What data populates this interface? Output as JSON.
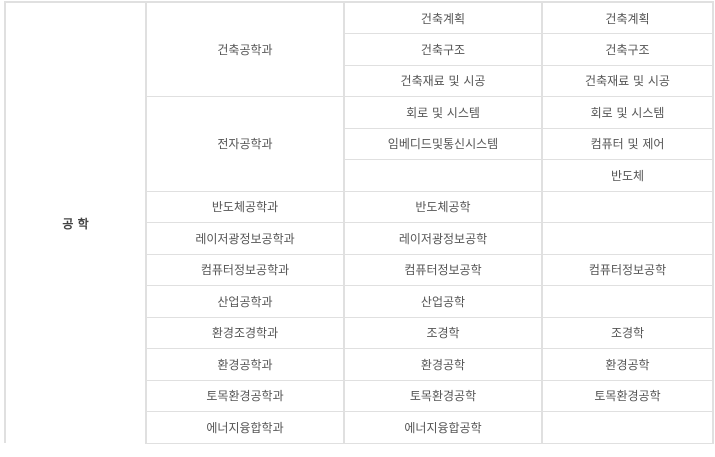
{
  "category": "공 학",
  "rows": [
    {
      "dept": "건축공학과",
      "a": [
        "건축계획",
        "건축구조",
        "건축재료 및 시공"
      ],
      "b": [
        "건축계획",
        "건축구조",
        "건축재료 및 시공"
      ]
    },
    {
      "dept": "전자공학과",
      "a": [
        "회로 및 시스템",
        "임베디드및통신시스템",
        ""
      ],
      "b": [
        "회로 및 시스템",
        "컴퓨터 및 제어",
        "반도체"
      ]
    },
    {
      "dept": "반도체공학과",
      "a": [
        "반도체공학"
      ],
      "b": [
        ""
      ]
    },
    {
      "dept": "레이저광정보공학과",
      "a": [
        "레이저광정보공학"
      ],
      "b": [
        ""
      ]
    },
    {
      "dept": "컴퓨터정보공학과",
      "a": [
        "컴퓨터정보공학"
      ],
      "b": [
        "컴퓨터정보공학"
      ]
    },
    {
      "dept": "산업공학과",
      "a": [
        "산업공학"
      ],
      "b": [
        ""
      ]
    },
    {
      "dept": "환경조경학과",
      "a": [
        "조경학"
      ],
      "b": [
        "조경학"
      ]
    },
    {
      "dept": "환경공학과",
      "a": [
        "환경공학"
      ],
      "b": [
        "환경공학"
      ]
    },
    {
      "dept": "토목환경공학과",
      "a": [
        "토목환경공학"
      ],
      "b": [
        "토목환경공학"
      ]
    },
    {
      "dept": "에너지융합학과",
      "a": [
        "에너지융합공학"
      ],
      "b": [
        ""
      ]
    }
  ]
}
